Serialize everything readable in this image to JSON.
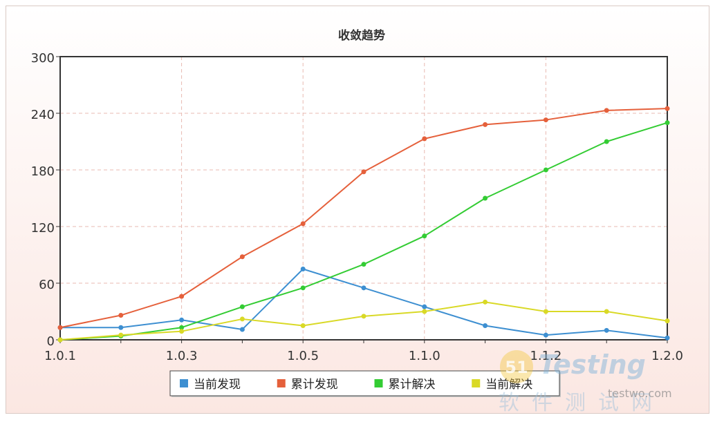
{
  "chart_data": {
    "type": "line",
    "title": "收敛趋势",
    "xlabel": "",
    "ylabel": "",
    "ylim": [
      0,
      300
    ],
    "yticks": [
      0,
      60,
      120,
      180,
      240,
      300
    ],
    "categories": [
      "1.0.1",
      "",
      "1.0.3",
      "",
      "1.0.5",
      "",
      "1.1.0",
      "",
      "1.1.2",
      "",
      "1.2.0"
    ],
    "grid": true,
    "legend_position": "bottom",
    "series": [
      {
        "name": "当前发现",
        "color": "#3d8fd1",
        "values": [
          13,
          13,
          21,
          11,
          75,
          55,
          35,
          15,
          5,
          10,
          2
        ]
      },
      {
        "name": "累计发现",
        "color": "#e5603b",
        "values": [
          13,
          26,
          46,
          88,
          123,
          178,
          213,
          228,
          233,
          243,
          245
        ]
      },
      {
        "name": "累计解决",
        "color": "#33cc33",
        "values": [
          0,
          4,
          13,
          35,
          55,
          80,
          110,
          150,
          180,
          210,
          230
        ]
      },
      {
        "name": "当前解决",
        "color": "#d9d926",
        "values": [
          0,
          5,
          9,
          22,
          15,
          25,
          30,
          40,
          30,
          30,
          20
        ]
      }
    ]
  },
  "watermark": {
    "logo_number": "51",
    "logo_text": "Testing",
    "cn_text": "软件测试网",
    "url": "testwo.com"
  }
}
